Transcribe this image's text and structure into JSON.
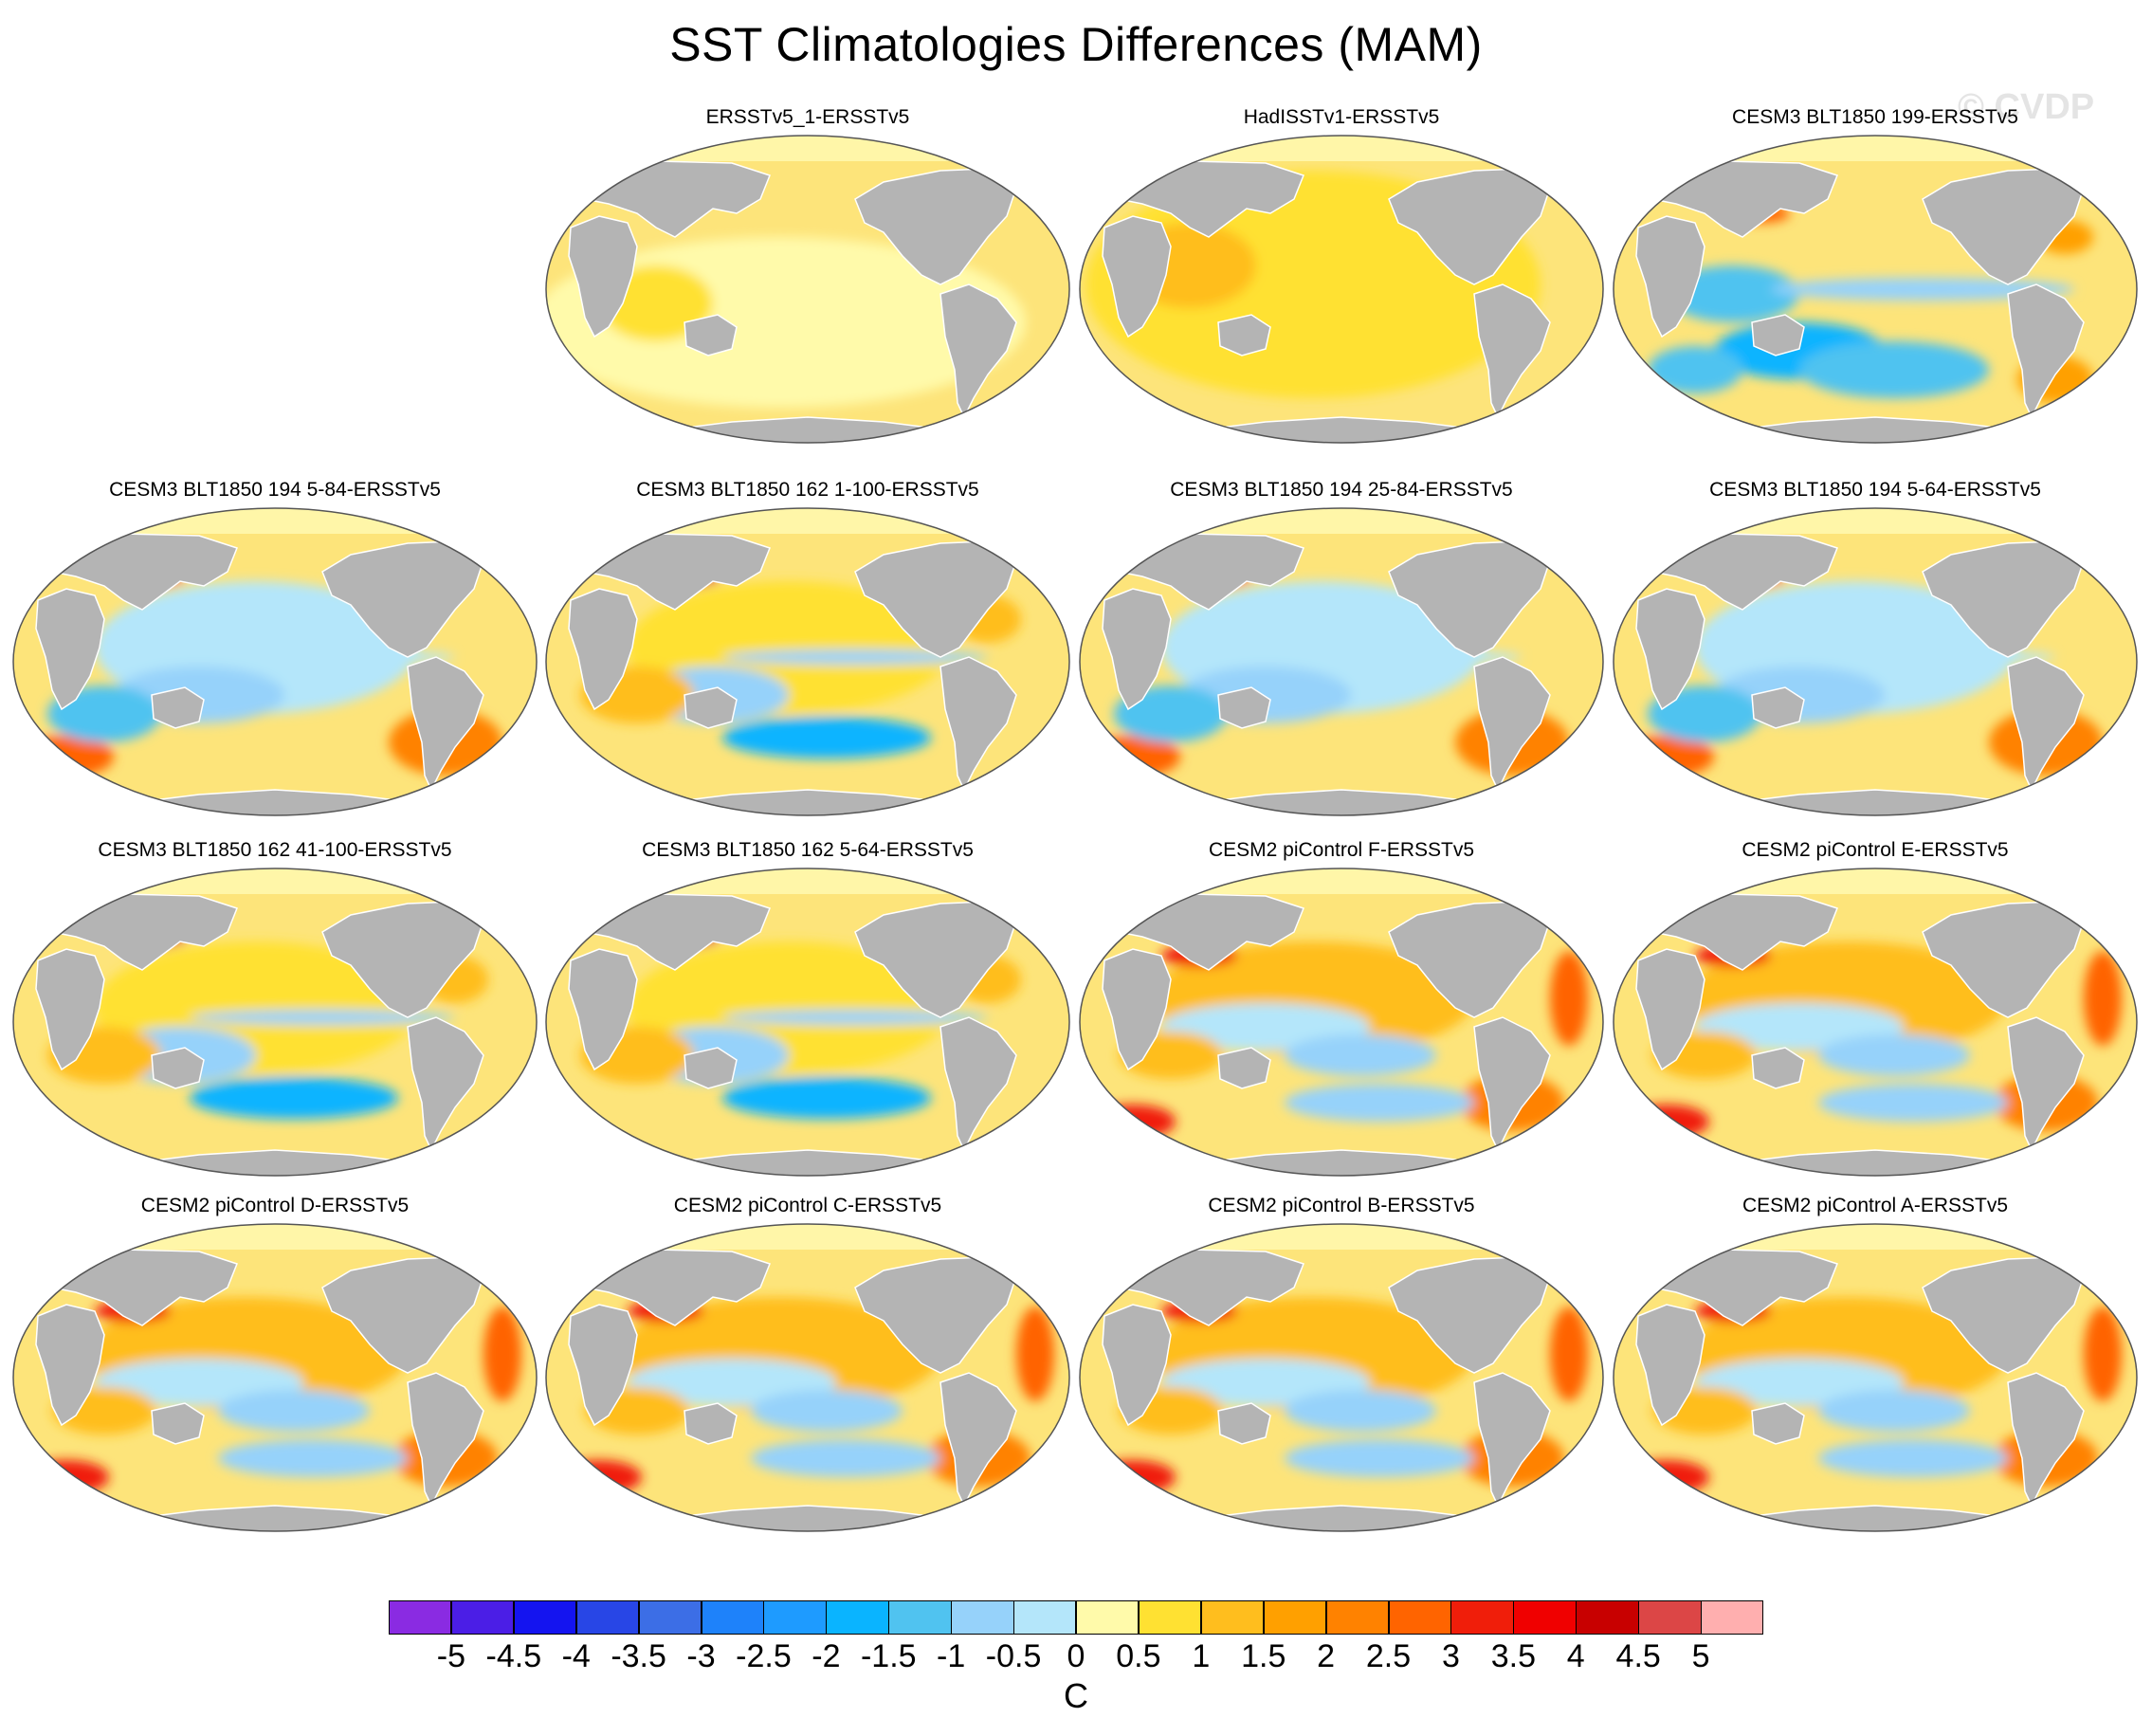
{
  "title": "SST Climatologies Differences (MAM)",
  "watermark": "© CVDP",
  "colorbar": {
    "units": "C",
    "labels": [
      "-5",
      "-4.5",
      "-4",
      "-3.5",
      "-3",
      "-2.5",
      "-2",
      "-1.5",
      "-1",
      "-0.5",
      "0",
      "0.5",
      "1",
      "1.5",
      "2",
      "2.5",
      "3",
      "3.5",
      "4",
      "4.5",
      "5"
    ],
    "colors": [
      "#8a2be2",
      "#4b1ee6",
      "#1414f0",
      "#2846e6",
      "#3c6ee6",
      "#1e82fa",
      "#1e9bff",
      "#0ab4ff",
      "#50c3f0",
      "#96d2fa",
      "#b4e6fa",
      "#fffaaa",
      "#ffe132",
      "#ffbe1e",
      "#ffa000",
      "#ff8200",
      "#ff6400",
      "#f01e0a",
      "#f00000",
      "#c80000",
      "#dc4646",
      "#ffafaf"
    ]
  },
  "map_colors": {
    "land": "#b4b4b4",
    "ocean_base": "#fde47a",
    "polar": "#fff6a8"
  },
  "panels": [
    {
      "title": "ERSSTv5_1-ERSSTv5",
      "pattern": "flat-light"
    },
    {
      "title": "HadISSTv1-ERSSTv5",
      "pattern": "flat-warm"
    },
    {
      "title": "CESM3 BLT1850 199-ERSSTv5",
      "pattern": "cesm3-mixed"
    },
    {
      "title": "CESM3 BLT1850 194 5-84-ERSSTv5",
      "pattern": "cesm3-cool"
    },
    {
      "title": "CESM3 BLT1850 162 1-100-ERSSTv5",
      "pattern": "cesm3-warm"
    },
    {
      "title": "CESM3 BLT1850 194 25-84-ERSSTv5",
      "pattern": "cesm3-cool"
    },
    {
      "title": "CESM3 BLT1850 194 5-64-ERSSTv5",
      "pattern": "cesm3-cool"
    },
    {
      "title": "CESM3 BLT1850 162 41-100-ERSSTv5",
      "pattern": "cesm3-warm"
    },
    {
      "title": "CESM3 BLT1850 162 5-64-ERSSTv5",
      "pattern": "cesm3-warm"
    },
    {
      "title": "CESM2 piControl F-ERSSTv5",
      "pattern": "cesm2"
    },
    {
      "title": "CESM2 piControl E-ERSSTv5",
      "pattern": "cesm2"
    },
    {
      "title": "CESM2 piControl D-ERSSTv5",
      "pattern": "cesm2"
    },
    {
      "title": "CESM2 piControl C-ERSSTv5",
      "pattern": "cesm2"
    },
    {
      "title": "CESM2 piControl B-ERSSTv5",
      "pattern": "cesm2"
    },
    {
      "title": "CESM2 piControl A-ERSSTv5",
      "pattern": "cesm2"
    }
  ]
}
